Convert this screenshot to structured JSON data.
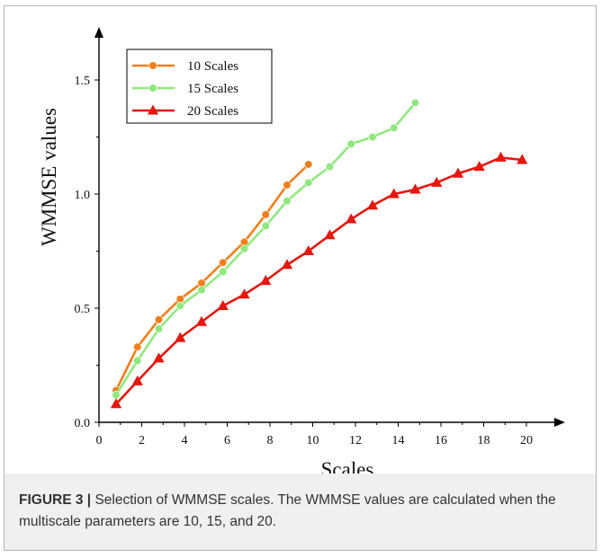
{
  "caption": {
    "label": "FIGURE 3 |",
    "text": " Selection of WMMSE scales. The WMMSE values are calculated when the multiscale parameters are 10, 15, and 20."
  },
  "chart_data": {
    "type": "line",
    "title": "",
    "xlabel": "Scales",
    "ylabel": "WMMSE values",
    "xlim": [
      0,
      21
    ],
    "ylim": [
      0,
      1.75
    ],
    "x_ticks": [
      0,
      2,
      4,
      6,
      8,
      10,
      12,
      14,
      16,
      18,
      20
    ],
    "x_tick_labels": [
      "0",
      "2",
      "4",
      "6",
      "8",
      "10",
      "12",
      "14",
      "16",
      "18",
      "20"
    ],
    "y_ticks": [
      0,
      0.5,
      1.0,
      1.5
    ],
    "y_tick_labels": [
      "0.0",
      "0.5",
      "1.0",
      "1.5"
    ],
    "grid": false,
    "legend_position": "top-left",
    "series": [
      {
        "name": "10 Scales",
        "color": "#f07f1c",
        "marker": "circle",
        "x": [
          0.8,
          1.8,
          2.8,
          3.8,
          4.8,
          5.8,
          6.8,
          7.8,
          8.8,
          9.8
        ],
        "y": [
          0.14,
          0.33,
          0.45,
          0.54,
          0.61,
          0.7,
          0.79,
          0.91,
          1.04,
          1.13
        ]
      },
      {
        "name": "15 Scales",
        "color": "#8fe87e",
        "marker": "circle",
        "x": [
          0.8,
          1.8,
          2.8,
          3.8,
          4.8,
          5.8,
          6.8,
          7.8,
          8.8,
          9.8,
          10.8,
          11.8,
          12.8,
          13.8,
          14.8
        ],
        "y": [
          0.12,
          0.27,
          0.41,
          0.51,
          0.58,
          0.66,
          0.76,
          0.86,
          0.97,
          1.05,
          1.12,
          1.22,
          1.25,
          1.29,
          1.4
        ]
      },
      {
        "name": "20 Scales",
        "color": "#e5170f",
        "marker": "triangle",
        "x": [
          0.8,
          1.8,
          2.8,
          3.8,
          4.8,
          5.8,
          6.8,
          7.8,
          8.8,
          9.8,
          10.8,
          11.8,
          12.8,
          13.8,
          14.8,
          15.8,
          16.8,
          17.8,
          18.8,
          19.8
        ],
        "y": [
          0.08,
          0.18,
          0.28,
          0.37,
          0.44,
          0.51,
          0.56,
          0.62,
          0.69,
          0.75,
          0.82,
          0.89,
          0.95,
          1.0,
          1.02,
          1.05,
          1.09,
          1.12,
          1.16,
          1.15
        ]
      }
    ]
  }
}
